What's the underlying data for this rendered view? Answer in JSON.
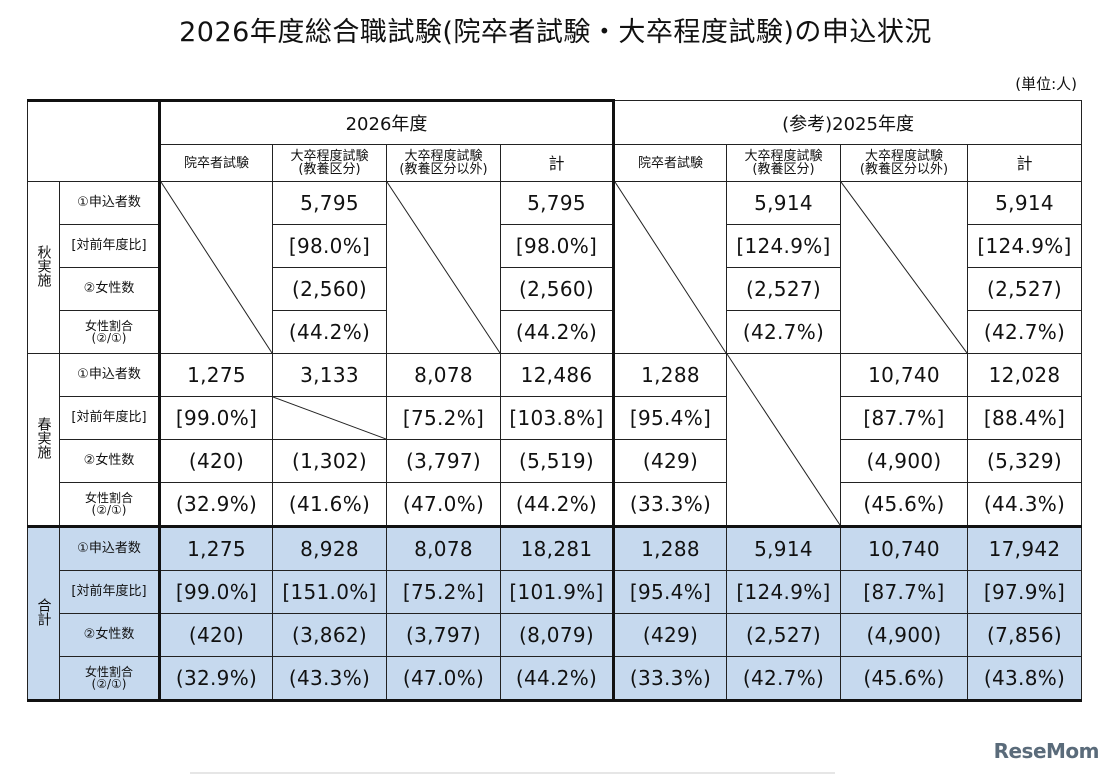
{
  "title": "2026年度総合職試験(院卒者試験・大卒程度試験)の申込状況",
  "unit": "(単位:人)",
  "header": {
    "year_2026": "2026年度",
    "year_2025": "(参考)2025年度",
    "cols": [
      "院卒者試験",
      "大卒程度試験\n(教養区分)",
      "大卒程度試験\n(教養区分以外)",
      "計"
    ]
  },
  "row_labels": {
    "applicants": "①申込者数",
    "ratio": "[対前年度比]",
    "female": "②女性数",
    "female_ratio": "女性割合\n(②/①)"
  },
  "sections": {
    "fall": "秋実施",
    "spring": "春実施",
    "total": "合計"
  },
  "fall": {
    "applicants": [
      "",
      "5,795",
      "",
      "5,795",
      "",
      "5,914",
      "",
      "5,914"
    ],
    "ratio": [
      "",
      "[98.0%]",
      "",
      "[98.0%]",
      "",
      "[124.9%]",
      "",
      "[124.9%]"
    ],
    "female": [
      "",
      "(2,560)",
      "",
      "(2,560)",
      "",
      "(2,527)",
      "",
      "(2,527)"
    ],
    "female_ratio": [
      "",
      "(44.2%)",
      "",
      "(44.2%)",
      "",
      "(42.7%)",
      "",
      "(42.7%)"
    ]
  },
  "spring": {
    "applicants": [
      "1,275",
      "3,133",
      "8,078",
      "12,486",
      "1,288",
      "",
      "10,740",
      "12,028"
    ],
    "ratio": [
      "[99.0%]",
      "",
      "[75.2%]",
      "[103.8%]",
      "[95.4%]",
      "",
      "[87.7%]",
      "[88.4%]"
    ],
    "female": [
      "(420)",
      "(1,302)",
      "(3,797)",
      "(5,519)",
      "(429)",
      "",
      "(4,900)",
      "(5,329)"
    ],
    "female_ratio": [
      "(32.9%)",
      "(41.6%)",
      "(47.0%)",
      "(44.2%)",
      "(33.3%)",
      "",
      "(45.6%)",
      "(44.3%)"
    ]
  },
  "total": {
    "applicants": [
      "1,275",
      "8,928",
      "8,078",
      "18,281",
      "1,288",
      "5,914",
      "10,740",
      "17,942"
    ],
    "ratio": [
      "[99.0%]",
      "[151.0%]",
      "[75.2%]",
      "[101.9%]",
      "[95.4%]",
      "[124.9%]",
      "[87.7%]",
      "[97.9%]"
    ],
    "female": [
      "(420)",
      "(3,862)",
      "(3,797)",
      "(8,079)",
      "(429)",
      "(2,527)",
      "(4,900)",
      "(7,856)"
    ],
    "female_ratio": [
      "(32.9%)",
      "(43.3%)",
      "(47.0%)",
      "(44.2%)",
      "(33.3%)",
      "(42.7%)",
      "(45.6%)",
      "(43.8%)"
    ]
  },
  "logo": "ReseMom",
  "colors": {
    "total_bg": "#c6d9ee",
    "logo": "#5a6b7a"
  }
}
